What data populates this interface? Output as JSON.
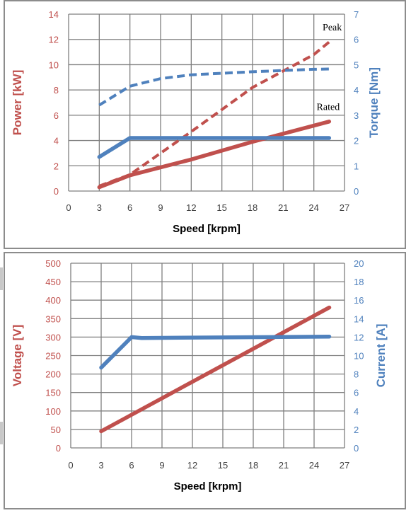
{
  "colors": {
    "red": "#C0504D",
    "blue": "#4F81BD",
    "grid": "#7f7f7f",
    "axis_text": "#404040"
  },
  "chart_data": [
    {
      "type": "line",
      "xlabel": "Speed [krpm]",
      "ylabel_left": "Power [kW]",
      "ylabel_right": "Torque [Nm]",
      "xlim": [
        0,
        27
      ],
      "xticks": [
        0,
        3,
        6,
        9,
        12,
        15,
        18,
        21,
        24,
        27
      ],
      "ylim_left": [
        0,
        14
      ],
      "yticks_left": [
        0,
        2,
        4,
        6,
        8,
        10,
        12,
        14
      ],
      "ylim_right": [
        0,
        7
      ],
      "yticks_right": [
        0,
        1,
        2,
        3,
        4,
        5,
        6,
        7
      ],
      "grid": true,
      "annotations": [
        {
          "text": "Peak",
          "x": 25.8,
          "y_left": 12.7
        },
        {
          "text": "Rated",
          "x": 25.4,
          "y_left": 6.4
        }
      ],
      "series": [
        {
          "axis": "left",
          "color": "red",
          "style": "dashed",
          "x": [
            3,
            6,
            12,
            18,
            24,
            25.5
          ],
          "y": [
            0.4,
            1.3,
            4.7,
            8.2,
            10.8,
            11.8
          ]
        },
        {
          "axis": "left",
          "color": "red",
          "style": "solid",
          "x": [
            3,
            6,
            12,
            18,
            25.5
          ],
          "y": [
            0.3,
            1.25,
            2.5,
            3.9,
            5.5
          ]
        },
        {
          "axis": "right",
          "color": "blue",
          "style": "dashed",
          "x": [
            3,
            6,
            9,
            12,
            18,
            24,
            25.5
          ],
          "y": [
            3.4,
            4.15,
            4.45,
            4.6,
            4.72,
            4.82,
            4.83
          ]
        },
        {
          "axis": "right",
          "color": "blue",
          "style": "solid",
          "x": [
            3,
            6,
            25.5
          ],
          "y": [
            1.35,
            2.1,
            2.1
          ]
        }
      ]
    },
    {
      "type": "line",
      "xlabel": "Speed [krpm]",
      "ylabel_left": "Voltage [V]",
      "ylabel_right": "Current [A]",
      "xlim": [
        0,
        27
      ],
      "xticks": [
        0,
        3,
        6,
        9,
        12,
        15,
        18,
        21,
        24,
        27
      ],
      "ylim_left": [
        0,
        500
      ],
      "yticks_left": [
        0,
        50,
        100,
        150,
        200,
        250,
        300,
        350,
        400,
        450,
        500
      ],
      "ylim_right": [
        0,
        20
      ],
      "yticks_right": [
        0,
        2,
        4,
        6,
        8,
        10,
        12,
        14,
        16,
        18,
        20
      ],
      "grid": true,
      "annotations": [],
      "series": [
        {
          "axis": "left",
          "color": "red",
          "style": "solid",
          "x": [
            3,
            25.5
          ],
          "y": [
            45,
            380
          ]
        },
        {
          "axis": "right",
          "color": "blue",
          "style": "solid",
          "x": [
            3,
            6,
            7,
            25.5
          ],
          "y": [
            8.7,
            12.0,
            11.9,
            12.05
          ]
        }
      ]
    }
  ]
}
